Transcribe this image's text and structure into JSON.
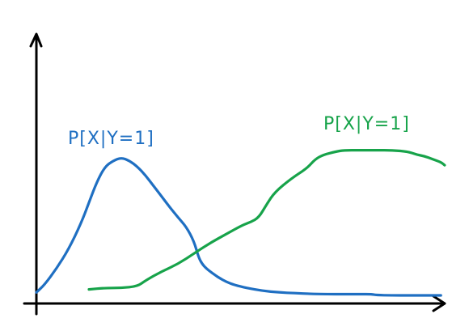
{
  "chart_data": {
    "type": "line",
    "title": "",
    "xlabel": "",
    "ylabel": "",
    "xlim": [
      0,
      100
    ],
    "ylim": [
      0,
      1
    ],
    "grid": false,
    "series": [
      {
        "name": "P[X|Y=1]",
        "color": "#1f6fc2",
        "x": [
          0,
          1.9,
          4.8,
          7.7,
          10.6,
          12.5,
          14.4,
          16.3,
          18.3,
          20.2,
          22.1,
          24.0,
          26.0,
          27.9,
          29.8,
          31.7,
          33.7,
          35.6,
          37.5,
          38.5,
          39.4,
          40.4,
          41.3,
          42.3,
          43.3,
          45.2,
          47.1,
          50.0,
          53.8,
          57.7,
          61.5,
          65.4,
          69.2,
          73.1,
          76.9,
          79.8,
          80.8,
          84.6,
          88.5,
          92.3,
          96.2
        ],
        "y": [
          0.02,
          0.07,
          0.18,
          0.31,
          0.48,
          0.62,
          0.76,
          0.86,
          0.9,
          0.92,
          0.9,
          0.86,
          0.8,
          0.73,
          0.66,
          0.59,
          0.52,
          0.46,
          0.36,
          0.26,
          0.21,
          0.18,
          0.16,
          0.14,
          0.12,
          0.09,
          0.07,
          0.05,
          0.03,
          0.02,
          0.015,
          0.01,
          0.008,
          0.008,
          0.008,
          0.008,
          0.002,
          0.0,
          0.0,
          0.0,
          0.0
        ]
      },
      {
        "name": "P[X|Y=1]",
        "color": "#17a34a",
        "x": [
          12.5,
          16.3,
          20.2,
          24.0,
          26.0,
          29.8,
          33.7,
          37.5,
          41.3,
          45.2,
          49.0,
          51.0,
          52.9,
          54.8,
          56.7,
          60.6,
          64.4,
          66.3,
          68.3,
          71.2,
          73.1,
          76.9,
          80.8,
          84.6,
          88.5,
          90.4,
          92.3,
          94.2,
          96.2,
          97.1
        ],
        "y": [
          0.04,
          0.05,
          0.05,
          0.06,
          0.1,
          0.16,
          0.21,
          0.28,
          0.35,
          0.41,
          0.47,
          0.49,
          0.52,
          0.61,
          0.69,
          0.78,
          0.85,
          0.91,
          0.94,
          0.96,
          0.97,
          0.97,
          0.97,
          0.97,
          0.96,
          0.94,
          0.93,
          0.91,
          0.89,
          0.87
        ]
      }
    ]
  }
}
